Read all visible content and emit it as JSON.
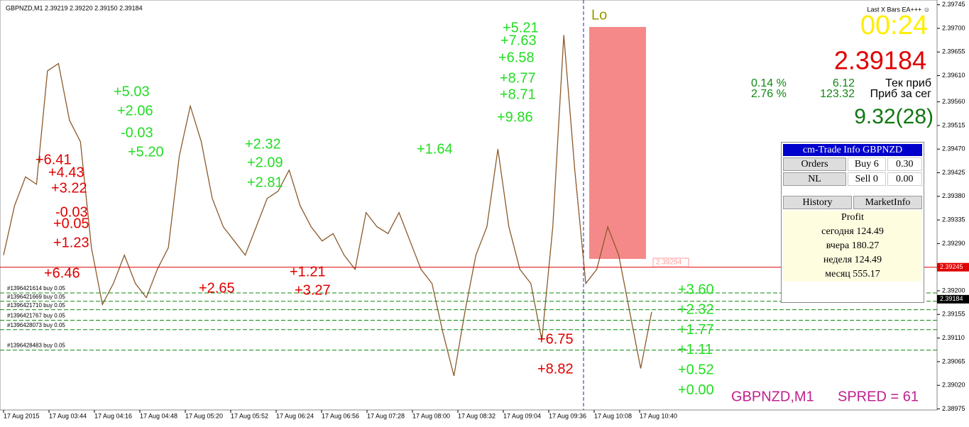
{
  "window": {
    "title": "GBPNZD,M1  2.39219 2.39220 2.39150 2.39184",
    "ea_label": "Last X Bars EA+++ ☺",
    "marker": "Lo",
    "symbol_info": "GBPNZD,M1",
    "spread": "SPRED = 61"
  },
  "chart": {
    "ylim": [
      2.38973,
      2.39754
    ],
    "yticks": [
      2.39745,
      {
        "value": 2.397,
        "label": "2.39700"
      },
      2.39655,
      {
        "value": 2.3961,
        "label": "2.39610"
      },
      {
        "value": 2.3956,
        "label": "2.39560"
      },
      2.39515,
      {
        "value": 2.3947,
        "label": "2.39470"
      },
      2.39425,
      {
        "value": 2.3938,
        "label": "2.39380"
      },
      2.39335,
      {
        "value": 2.3929,
        "label": "2.39290"
      },
      2.39245,
      {
        "value": 2.392,
        "label": "2.39200"
      },
      2.39155,
      {
        "value": 2.3911,
        "label": "2.39110"
      },
      2.39065,
      {
        "value": 2.3902,
        "label": "2.39020"
      },
      2.38975
    ],
    "time_labels": [
      "17 Aug 2015",
      "17 Aug 03:44",
      "17 Aug 04:16",
      "17 Aug 04:48",
      "17 Aug 05:20",
      "17 Aug 05:52",
      "17 Aug 06:24",
      "17 Aug 06:56",
      "17 Aug 07:28",
      "17 Aug 08:00",
      "17 Aug 08:32",
      "17 Aug 09:04",
      "17 Aug 09:36",
      "17 Aug 10:08",
      "17 Aug 10:40"
    ],
    "price": {
      "color": "#8b5a2b",
      "values": [
        2.39268,
        2.39362,
        2.39417,
        2.39403,
        2.39619,
        2.39633,
        2.39525,
        2.39484,
        2.39282,
        2.39174,
        2.39214,
        2.39268,
        2.39214,
        2.39187,
        2.39241,
        2.39282,
        2.39457,
        2.39552,
        2.39484,
        2.39376,
        2.39322,
        2.39295,
        2.39268,
        2.39322,
        2.39376,
        2.3939,
        2.3943,
        2.39362,
        2.39322,
        2.39295,
        2.39309,
        2.39268,
        2.39241,
        2.39349,
        2.39322,
        2.39309,
        2.39349,
        2.39295,
        2.39241,
        2.39214,
        2.3912,
        2.39038,
        2.3916,
        2.39268,
        2.39322,
        2.3947,
        2.39322,
        2.39241,
        2.39214,
        2.39106,
        2.39322,
        2.39687,
        2.3943,
        2.39214,
        2.39241,
        2.39322,
        2.39268,
        2.3916,
        2.39052,
        2.3916
      ]
    },
    "bid_line": {
      "value": 2.39245,
      "label": "2.39245",
      "color": "#e00000"
    },
    "current": {
      "value": 2.39184,
      "label": "2.39184"
    },
    "level_tag": {
      "value": 2.39254,
      "label": "2.39254"
    },
    "orders": [
      {
        "text": "#1396421614 buy 0.05",
        "price": 2.39196
      },
      {
        "text": "#1396421669 buy 0.05",
        "price": 2.3918
      },
      {
        "text": "#1396421710 buy 0.05",
        "price": 2.39164
      },
      {
        "text": "#1396421767 buy 0.05",
        "price": 2.39144
      },
      {
        "text": "#1396428073 buy 0.05",
        "price": 2.39126
      },
      {
        "text": "#1396428483 buy 0.05",
        "price": 2.39087
      }
    ],
    "order_profits": [
      "+3.60",
      "+2.32",
      "+1.77",
      "+1.11",
      "+0.52",
      "+0.00"
    ],
    "annotations": [
      {
        "text": "+6.41",
        "color": "#e00000"
      },
      {
        "text": "+4.43",
        "color": "#e00000"
      },
      {
        "text": "+3.22",
        "color": "#e00000"
      },
      {
        "text": "-0.03",
        "color": "#e00000"
      },
      {
        "text": "+0.05",
        "color": "#e00000"
      },
      {
        "text": "+1.23",
        "color": "#e00000"
      },
      {
        "text": "+6.46",
        "color": "#e00000"
      },
      {
        "text": "+2.65",
        "color": "#e00000"
      },
      {
        "text": "+1.21",
        "color": "#e00000"
      },
      {
        "text": "+3.27",
        "color": "#e00000"
      },
      {
        "text": "+6.75",
        "color": "#e00000"
      },
      {
        "text": "+8.82",
        "color": "#e00000"
      },
      {
        "text": "+5.03",
        "color": "#22dd22"
      },
      {
        "text": "+2.06",
        "color": "#22dd22"
      },
      {
        "text": "-0.03",
        "color": "#22dd22"
      },
      {
        "text": "+5.20",
        "color": "#22dd22"
      },
      {
        "text": "+2.32",
        "color": "#22dd22"
      },
      {
        "text": "+2.09",
        "color": "#22dd22"
      },
      {
        "text": "+2.81",
        "color": "#22dd22"
      },
      {
        "text": "+1.64",
        "color": "#22dd22"
      },
      {
        "text": "+5.21",
        "color": "#22dd22"
      },
      {
        "text": "+7.63",
        "color": "#22dd22"
      },
      {
        "text": "+6.58",
        "color": "#22dd22"
      },
      {
        "text": "+8.77",
        "color": "#22dd22"
      },
      {
        "text": "+8.71",
        "color": "#22dd22"
      },
      {
        "text": "+9.86",
        "color": "#22dd22"
      }
    ]
  },
  "stats": {
    "timer": "00:24",
    "price": "2.39184",
    "cur_pct": "0.14 %",
    "cur_profit": "6.12",
    "cur_label": "Тек приб",
    "day_pct": "2.76 %",
    "day_profit": "123.32",
    "day_label": "Приб за сег",
    "total": "9.32(28)"
  },
  "panel": {
    "title": "cm-Trade Info GBPNZD",
    "orders_btn": "Orders",
    "nl_btn": "NL",
    "buy": "Buy 6",
    "buy_lots": "0.30",
    "sell": "Sell 0",
    "sell_lots": "0.00",
    "history": "History",
    "market_info": "MarketInfo",
    "profit_title": "Profit",
    "today": "сегодня 124.49",
    "yesterday": "вчера 180.27",
    "week": "неделя 124.49",
    "month": "месяц 555.17"
  }
}
